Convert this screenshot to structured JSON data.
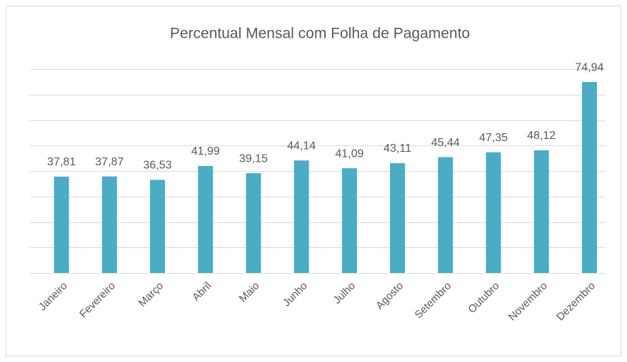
{
  "chart_data": {
    "type": "bar",
    "title": "Percentual Mensal com Folha de Pagamento",
    "categories": [
      "Janeiro",
      "Fevereiro",
      "Março",
      "Abril",
      "Maio",
      "Junho",
      "Julho",
      "Agosto",
      "Setembro",
      "Outubro",
      "Novembro",
      "Dezembro"
    ],
    "values": [
      37.81,
      37.87,
      36.53,
      41.99,
      39.15,
      44.14,
      41.09,
      43.11,
      45.44,
      47.35,
      48.12,
      74.94
    ],
    "value_labels": [
      "37,81",
      "37,87",
      "36,53",
      "41,99",
      "39,15",
      "44,14",
      "41,09",
      "43,11",
      "45,44",
      "47,35",
      "48,12",
      "74,94"
    ],
    "color": "#4bacc6",
    "ylim": [
      0,
      80
    ],
    "yticks": [
      0,
      10,
      20,
      30,
      40,
      50,
      60,
      70,
      80
    ],
    "grid": true
  }
}
